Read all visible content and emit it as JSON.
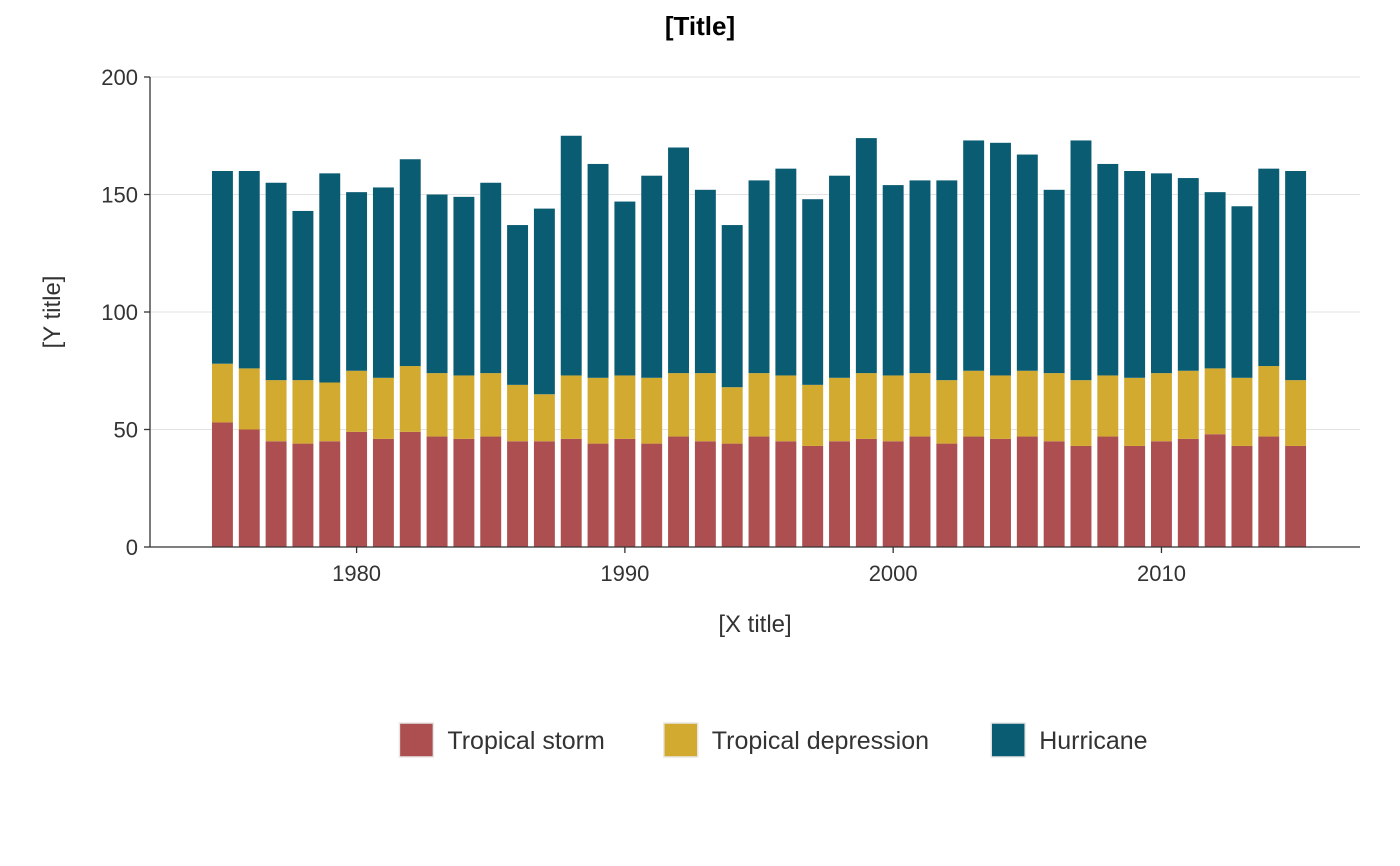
{
  "chart_data": {
    "type": "bar",
    "stacked": true,
    "title": "[Title]",
    "xlabel": "[X title]",
    "ylabel": "[Y title]",
    "xlim": [
      1972.3,
      2017.4
    ],
    "ylim": [
      0,
      200
    ],
    "x_ticks": [
      1980,
      1990,
      2000,
      2010
    ],
    "x_tick_labels": [
      "1980",
      "1990",
      "2000",
      "2010"
    ],
    "y_ticks": [
      0,
      50,
      100,
      150,
      200
    ],
    "y_tick_labels": [
      "0",
      "50",
      "100",
      "150",
      "200"
    ],
    "grid": "horizontal",
    "legend_position": "bottom",
    "x": [
      1975,
      1976,
      1977,
      1978,
      1979,
      1980,
      1981,
      1982,
      1983,
      1984,
      1985,
      1986,
      1987,
      1988,
      1989,
      1990,
      1991,
      1992,
      1993,
      1994,
      1995,
      1996,
      1997,
      1998,
      1999,
      2000,
      2001,
      2002,
      2003,
      2004,
      2005,
      2006,
      2007,
      2008,
      2009,
      2010,
      2011,
      2012,
      2013,
      2014,
      2015
    ],
    "series": [
      {
        "name": "Tropical storm",
        "color": "#ad4f51",
        "values": [
          53,
          50,
          45,
          44,
          45,
          49,
          46,
          49,
          47,
          46,
          47,
          45,
          45,
          46,
          44,
          46,
          44,
          47,
          45,
          44,
          47,
          45,
          43,
          45,
          46,
          45,
          47,
          44,
          47,
          46,
          47,
          45,
          43,
          47,
          43,
          45,
          46,
          48,
          43,
          47,
          43
        ]
      },
      {
        "name": "Tropical depression",
        "color": "#d1aa2f",
        "values": [
          25,
          26,
          26,
          27,
          25,
          26,
          26,
          28,
          27,
          27,
          27,
          24,
          20,
          27,
          28,
          27,
          28,
          27,
          29,
          24,
          27,
          28,
          26,
          27,
          28,
          28,
          27,
          27,
          28,
          27,
          28,
          29,
          28,
          26,
          29,
          29,
          29,
          28,
          29,
          30,
          28
        ]
      },
      {
        "name": "Hurricane",
        "color": "#0a5c73",
        "values": [
          82,
          84,
          84,
          72,
          89,
          76,
          81,
          88,
          76,
          76,
          81,
          68,
          79,
          102,
          91,
          74,
          86,
          96,
          78,
          69,
          82,
          88,
          79,
          86,
          100,
          81,
          82,
          85,
          98,
          99,
          92,
          78,
          102,
          90,
          88,
          85,
          82,
          75,
          73,
          84,
          89
        ]
      }
    ]
  }
}
